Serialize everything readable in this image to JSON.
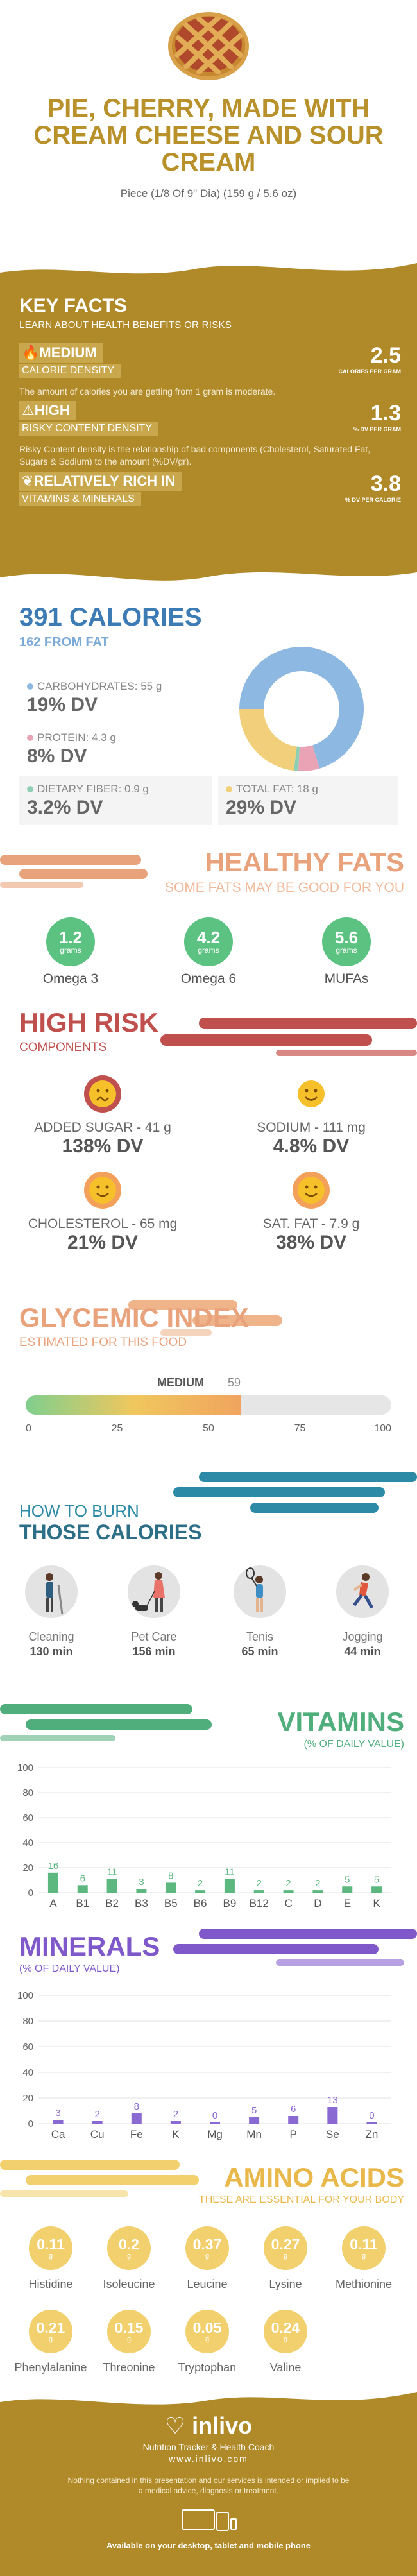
{
  "header": {
    "title": "PIE, CHERRY, MADE WITH CREAM CHEESE AND SOUR CREAM",
    "serving": "Piece (1/8 Of 9\" Dia) (159 g / 5.6 oz)"
  },
  "key_facts": {
    "title": "KEY FACTS",
    "subtitle": "LEARN ABOUT HEALTH BENEFITS OR RISKS",
    "items": [
      {
        "badge": "MEDIUM",
        "label": "CALORIE DENSITY",
        "value": "2.5",
        "unit": "CALORIES PER GRAM",
        "desc": "The amount of calories you are getting from 1 gram is moderate.",
        "icon": "flame-icon"
      },
      {
        "badge": "HIGH",
        "label": "RISKY CONTENT DENSITY",
        "value": "1.3",
        "unit": "% DV PER GRAM",
        "desc": "Risky Content density is the relationship of bad components (Cholesterol, Saturated Fat, Sugars & Sodium) to the amount (%DV/gr).",
        "icon": "warning-icon"
      },
      {
        "badge": "RELATIVELY RICH  IN",
        "label": "VITAMINS & MINERALS",
        "value": "3.8",
        "unit": "% DV PER CALORIE",
        "desc": "",
        "icon": "leaf-icon"
      }
    ]
  },
  "calories": {
    "title": "391 CALORIES",
    "from_fat": "162 FROM FAT",
    "macros": [
      {
        "label": "CARBOHYDRATES: 55 g",
        "dv": "19% DV",
        "color": "#8db8e1"
      },
      {
        "label": "PROTEIN: 4.3 g",
        "dv": "8% DV",
        "color": "#eaa3b4"
      },
      {
        "label": "DIETARY FIBER: 0.9 g",
        "dv": "3.2% DV",
        "color": "#8ccfb3"
      },
      {
        "label": "TOTAL FAT: 18 g",
        "dv": "29% DV",
        "color": "#f2cf7a"
      }
    ],
    "donut": [
      {
        "name": "carbohydrates",
        "value": 55,
        "color": "#8db8e1"
      },
      {
        "name": "protein",
        "value": 4.3,
        "color": "#eaa3b4"
      },
      {
        "name": "fiber",
        "value": 0.9,
        "color": "#8ccfb3"
      },
      {
        "name": "fat",
        "value": 18,
        "color": "#f2cf7a"
      }
    ]
  },
  "healthy_fats": {
    "title": "HEALTHY FATS",
    "subtitle": "SOME FATS MAY BE GOOD FOR YOU",
    "unit": "grams",
    "items": [
      {
        "value": "1.2",
        "name": "Omega 3"
      },
      {
        "value": "4.2",
        "name": "Omega 6"
      },
      {
        "value": "5.6",
        "name": "MUFAs"
      }
    ],
    "color": "#5cc281"
  },
  "high_risk": {
    "title": "HIGH RISK",
    "subtitle": "COMPONENTS",
    "items": [
      {
        "label": "ADDED SUGAR - 41 g",
        "dv": "138% DV",
        "mood": "sick"
      },
      {
        "label": "SODIUM - 111 mg",
        "dv": "4.8% DV",
        "mood": "happy"
      },
      {
        "label": "CHOLESTEROL - 65 mg",
        "dv": "21% DV",
        "mood": "ok"
      },
      {
        "label": "SAT. FAT - 7.9 g",
        "dv": "38% DV",
        "mood": "ok"
      }
    ]
  },
  "glycemic": {
    "title": "GLYCEMIC INDEX",
    "subtitle": "ESTIMATED FOR THIS FOOD",
    "level": "MEDIUM",
    "value": 59,
    "ticks": [
      "0",
      "25",
      "50",
      "75",
      "100"
    ]
  },
  "burn": {
    "title_line1": "HOW TO BURN",
    "title_line2": "THOSE CALORIES",
    "activities": [
      {
        "name": "Cleaning",
        "minutes": "130 min",
        "icon": "cleaning-icon"
      },
      {
        "name": "Pet Care",
        "minutes": "156 min",
        "icon": "dog-walking-icon"
      },
      {
        "name": "Tenis",
        "minutes": "65 min",
        "icon": "tennis-icon"
      },
      {
        "name": "Jogging",
        "minutes": "44 min",
        "icon": "jogging-icon"
      }
    ]
  },
  "chart_data": [
    {
      "type": "bar",
      "title": "VITAMINS",
      "subtitle": "(% OF DAILY VALUE)",
      "categories": [
        "A",
        "B1",
        "B2",
        "B3",
        "B5",
        "B6",
        "B9",
        "B12",
        "C",
        "D",
        "E",
        "K"
      ],
      "values": [
        16,
        6,
        11,
        3,
        8,
        2,
        11,
        2,
        2,
        2,
        5,
        5
      ],
      "ylim": [
        0,
        100
      ],
      "yticks": [
        "0",
        "20",
        "40",
        "60",
        "80",
        "100"
      ],
      "color": "#5cb87f",
      "grid": true
    },
    {
      "type": "bar",
      "title": "MINERALS",
      "subtitle": "(% OF DAILY VALUE)",
      "categories": [
        "Ca",
        "Cu",
        "Fe",
        "K",
        "Mg",
        "Mn",
        "P",
        "Se",
        "Zn"
      ],
      "values": [
        3,
        2,
        8,
        2,
        0,
        5,
        6,
        13,
        0
      ],
      "ylim": [
        0,
        100
      ],
      "yticks": [
        "0",
        "20",
        "40",
        "60",
        "80",
        "100"
      ],
      "color": "#8b69d2",
      "grid": true
    }
  ],
  "amino": {
    "title": "AMINO ACIDS",
    "subtitle": "THESE ARE ESSENTIAL FOR YOUR BODY",
    "unit": "g",
    "items": [
      {
        "value": "0.11",
        "name": "Histidine"
      },
      {
        "value": "0.2",
        "name": "Isoleucine"
      },
      {
        "value": "0.37",
        "name": "Leucine"
      },
      {
        "value": "0.27",
        "name": "Lysine"
      },
      {
        "value": "0.11",
        "name": "Methionine"
      },
      {
        "value": "0.21",
        "name": "Phenylalanine"
      },
      {
        "value": "0.15",
        "name": "Threonine"
      },
      {
        "value": "0.05",
        "name": "Tryptophan"
      },
      {
        "value": "0.24",
        "name": "Valine"
      }
    ]
  },
  "footer": {
    "brand": "inlivo",
    "tagline": "Nutrition Tracker & Health Coach",
    "url": "www.inlivo.com",
    "disclaimer": "Nothing contained in this presentation and our services is intended or implied to be a medical advice, diagnosis or treatment.",
    "availability": "Available on your desktop, tablet and mobile phone"
  }
}
